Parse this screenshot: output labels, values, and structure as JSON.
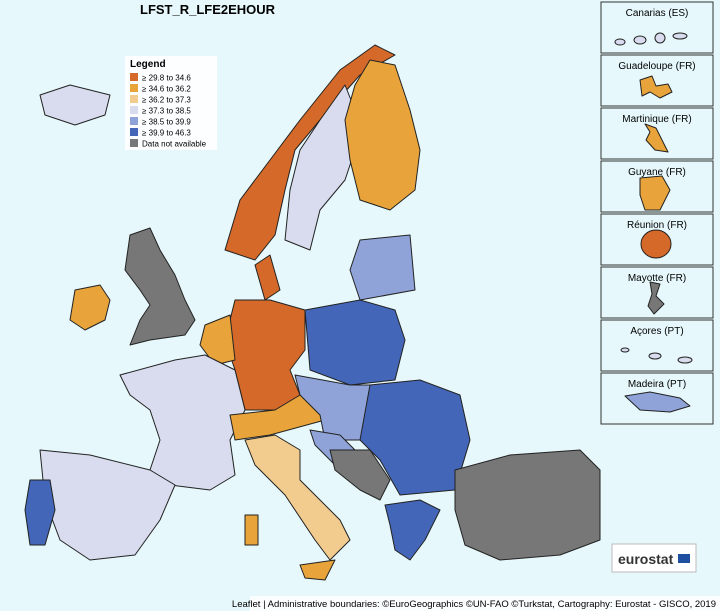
{
  "title": "LFST_R_LFE2EHOUR",
  "legend": {
    "title": "Legend",
    "items": [
      {
        "label": "≥ 29.8 to 34.6",
        "color": "#d4692a"
      },
      {
        "label": "≥ 34.6 to 36.2",
        "color": "#e8a43a"
      },
      {
        "label": "≥ 36.2 to 37.3",
        "color": "#f2cc8f"
      },
      {
        "label": "≥ 37.3 to 38.5",
        "color": "#d9dcee"
      },
      {
        "label": "≥ 38.5 to 39.9",
        "color": "#8fa3d8"
      },
      {
        "label": "≥ 39.9 to 46.3",
        "color": "#4466b8"
      },
      {
        "label": "Data not available",
        "color": "#777777"
      }
    ]
  },
  "insets": [
    "Canarias (ES)",
    "Guadeloupe (FR)",
    "Martinique (FR)",
    "Guyane (FR)",
    "Réunion (FR)",
    "Mayotte (FR)",
    "Açores (PT)",
    "Madeira (PT)"
  ],
  "logo": "eurostat",
  "attribution": "Leaflet | Administrative boundaries: ©EuroGeographics ©UN-FAO ©Turkstat, Cartography: Eurostat - GISCO, 2019"
}
